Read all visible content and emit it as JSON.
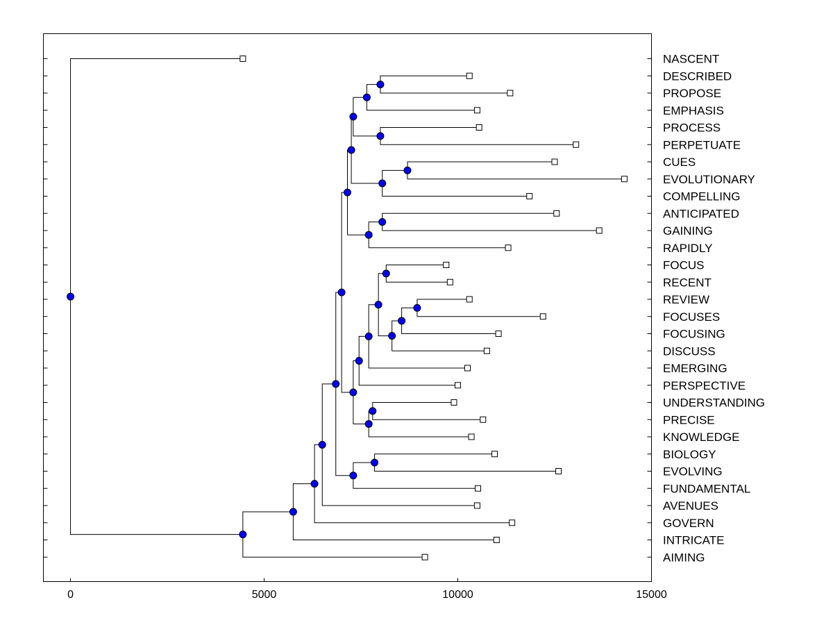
{
  "chart_data": {
    "type": "dendrogram",
    "orientation": "horizontal",
    "xlim": [
      -700,
      15000
    ],
    "x_ticks": [
      0,
      5000,
      10000,
      15000
    ],
    "x_tick_labels": [
      "0",
      "5000",
      "10000",
      "15000"
    ],
    "colors": {
      "node": "#0000ff",
      "leaf": "#ffffff",
      "line": "#000000"
    },
    "leaves": [
      {
        "label": "NASCENT",
        "value": 4450
      },
      {
        "label": "DESCRIBED",
        "value": 10300
      },
      {
        "label": "PROPOSE",
        "value": 11350
      },
      {
        "label": "EMPHASIS",
        "value": 10500
      },
      {
        "label": "PROCESS",
        "value": 10550
      },
      {
        "label": "PERPETUATE",
        "value": 13050
      },
      {
        "label": "CUES",
        "value": 12500
      },
      {
        "label": "EVOLUTIONARY",
        "value": 14300
      },
      {
        "label": "COMPELLING",
        "value": 11850
      },
      {
        "label": "ANTICIPATED",
        "value": 12550
      },
      {
        "label": "GAINING",
        "value": 13650
      },
      {
        "label": "RAPIDLY",
        "value": 11300
      },
      {
        "label": "FOCUS",
        "value": 9700
      },
      {
        "label": "RECENT",
        "value": 9800
      },
      {
        "label": "REVIEW",
        "value": 10300
      },
      {
        "label": "FOCUSES",
        "value": 12200
      },
      {
        "label": "FOCUSING",
        "value": 11050
      },
      {
        "label": "DISCUSS",
        "value": 10750
      },
      {
        "label": "EMERGING",
        "value": 10250
      },
      {
        "label": "PERSPECTIVE",
        "value": 10000
      },
      {
        "label": "UNDERSTANDING",
        "value": 9900
      },
      {
        "label": "PRECISE",
        "value": 10650
      },
      {
        "label": "KNOWLEDGE",
        "value": 10350
      },
      {
        "label": "BIOLOGY",
        "value": 10950
      },
      {
        "label": "EVOLVING",
        "value": 12600
      },
      {
        "label": "FUNDAMENTAL",
        "value": 10520
      },
      {
        "label": "AVENUES",
        "value": 10500
      },
      {
        "label": "GOVERN",
        "value": 11400
      },
      {
        "label": "INTRICATE",
        "value": 11000
      },
      {
        "label": "AIMING",
        "value": 9150
      }
    ],
    "merges": [
      {
        "id": "n1",
        "value": 8000,
        "children": [
          1,
          2
        ]
      },
      {
        "id": "n2",
        "value": 7650,
        "children": [
          "n1",
          3
        ]
      },
      {
        "id": "n3",
        "value": 8000,
        "children": [
          4,
          5
        ]
      },
      {
        "id": "n4",
        "value": 7300,
        "children": [
          "n2",
          "n3"
        ]
      },
      {
        "id": "n5",
        "value": 8700,
        "children": [
          6,
          7
        ]
      },
      {
        "id": "n6",
        "value": 8050,
        "children": [
          "n5",
          8
        ]
      },
      {
        "id": "n7",
        "value": 7250,
        "children": [
          "n4",
          "n6"
        ]
      },
      {
        "id": "n8",
        "value": 8050,
        "children": [
          9,
          10
        ]
      },
      {
        "id": "n9",
        "value": 7700,
        "children": [
          "n8",
          11
        ]
      },
      {
        "id": "n10",
        "value": 7150,
        "children": [
          "n7",
          "n9"
        ]
      },
      {
        "id": "n11",
        "value": 8150,
        "children": [
          12,
          13
        ]
      },
      {
        "id": "n12",
        "value": 8950,
        "children": [
          14,
          15
        ]
      },
      {
        "id": "n13",
        "value": 8550,
        "children": [
          "n12",
          16
        ]
      },
      {
        "id": "n14",
        "value": 8300,
        "children": [
          "n13",
          17
        ]
      },
      {
        "id": "n15",
        "value": 7950,
        "children": [
          "n11",
          "n14"
        ]
      },
      {
        "id": "n16",
        "value": 7700,
        "children": [
          "n15",
          18
        ]
      },
      {
        "id": "n17",
        "value": 7450,
        "children": [
          "n16",
          19
        ]
      },
      {
        "id": "n18",
        "value": 7800,
        "children": [
          20,
          21
        ]
      },
      {
        "id": "n19",
        "value": 7700,
        "children": [
          "n18",
          22
        ]
      },
      {
        "id": "n20",
        "value": 7300,
        "children": [
          "n17",
          "n19"
        ]
      },
      {
        "id": "n21",
        "value": 7000,
        "children": [
          "n10",
          "n20"
        ]
      },
      {
        "id": "n22",
        "value": 7850,
        "children": [
          23,
          24
        ]
      },
      {
        "id": "n23",
        "value": 7300,
        "children": [
          "n22",
          25
        ]
      },
      {
        "id": "n24",
        "value": 6850,
        "children": [
          "n21",
          "n23"
        ]
      },
      {
        "id": "n25",
        "value": 6500,
        "children": [
          "n24",
          26
        ]
      },
      {
        "id": "n26",
        "value": 6300,
        "children": [
          "n25",
          27
        ]
      },
      {
        "id": "n27",
        "value": 5750,
        "children": [
          "n26",
          28
        ]
      },
      {
        "id": "n28",
        "value": 4450,
        "children": [
          "n27",
          29
        ]
      },
      {
        "id": "n29",
        "value": 0,
        "children": [
          0,
          "n28"
        ]
      }
    ]
  }
}
